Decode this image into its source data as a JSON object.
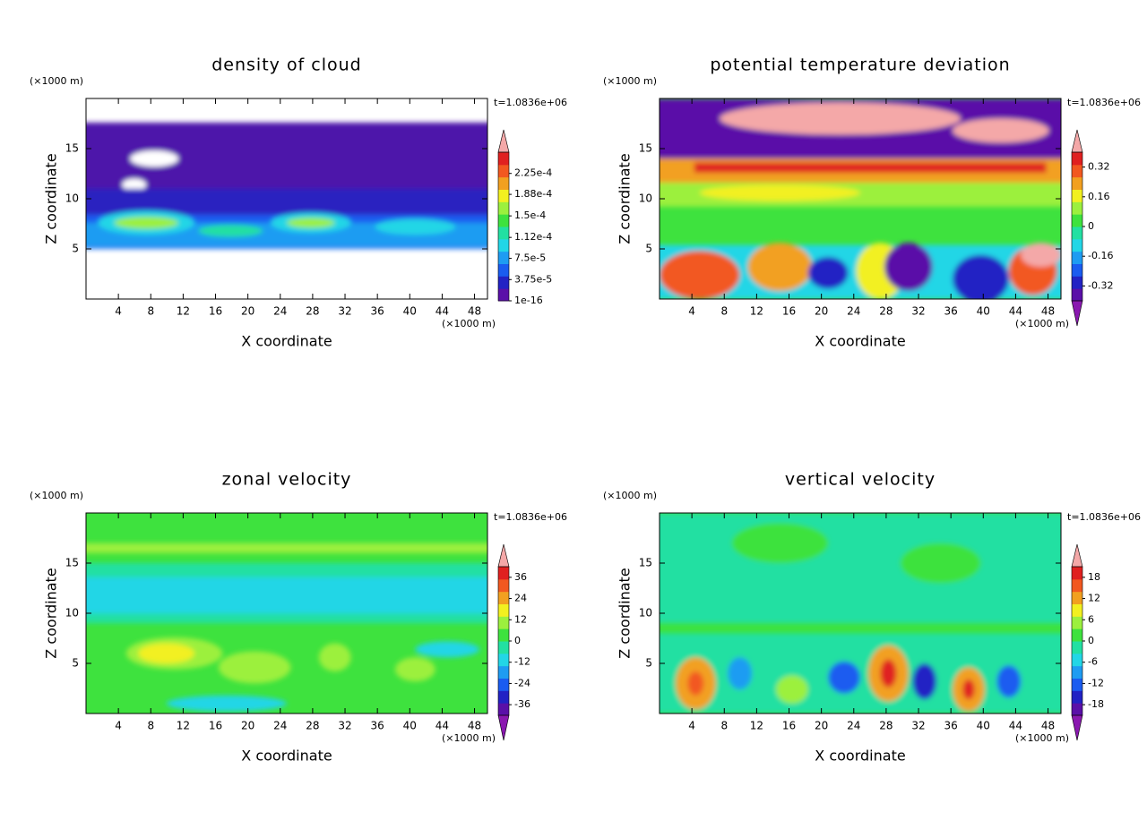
{
  "chart_data": [
    {
      "type": "contour",
      "title": "density of cloud",
      "x_label": "X coordinate",
      "y_label": "Z coordinate",
      "x_unit": "(×1000 m)",
      "y_unit": "(×1000 m)",
      "time_label": "t=1.0836e+06",
      "xlim": [
        0,
        49.6
      ],
      "ylim": [
        0,
        20
      ],
      "xticks": [
        4,
        8,
        12,
        16,
        20,
        24,
        28,
        32,
        36,
        40,
        44,
        48
      ],
      "yticks": [
        5,
        10,
        15
      ],
      "clim": [
        0,
        0.0002625
      ],
      "colorbar_extend": "max",
      "cticks": [
        {
          "value": 1e-16,
          "label": "1e-16"
        },
        {
          "value": 3.75e-05,
          "label": "3.75e-5"
        },
        {
          "value": 7.5e-05,
          "label": "7.5e-5"
        },
        {
          "value": 0.000112,
          "label": "1.12e-4"
        },
        {
          "value": 0.00015,
          "label": "1.5e-4"
        },
        {
          "value": 0.000188,
          "label": "1.88e-4"
        },
        {
          "value": 0.000225,
          "label": "2.25e-4"
        }
      ]
    },
    {
      "type": "contour",
      "title": "potential temperature deviation",
      "x_label": "X coordinate",
      "y_label": "Z coordinate",
      "x_unit": "(×1000 m)",
      "y_unit": "(×1000 m)",
      "time_label": "t=1.0836e+06",
      "xlim": [
        0,
        49.6
      ],
      "ylim": [
        0,
        20
      ],
      "xticks": [
        4,
        8,
        12,
        16,
        20,
        24,
        28,
        32,
        36,
        40,
        44,
        48
      ],
      "yticks": [
        5,
        10,
        15
      ],
      "clim": [
        -0.4,
        0.4
      ],
      "colorbar_extend": "both",
      "cticks": [
        -0.32,
        -0.16,
        0,
        0.16,
        0.32
      ]
    },
    {
      "type": "contour",
      "title": "zonal velocity",
      "x_label": "X coordinate",
      "y_label": "Z coordinate",
      "x_unit": "(×1000 m)",
      "y_unit": "(×1000 m)",
      "time_label": "t=1.0836e+06",
      "xlim": [
        0,
        49.6
      ],
      "ylim": [
        0,
        20
      ],
      "xticks": [
        4,
        8,
        12,
        16,
        20,
        24,
        28,
        32,
        36,
        40,
        44,
        48
      ],
      "yticks": [
        5,
        10,
        15
      ],
      "clim": [
        -42,
        42
      ],
      "colorbar_extend": "both",
      "cticks": [
        -36,
        -24,
        -12,
        0,
        12,
        24,
        36
      ]
    },
    {
      "type": "contour",
      "title": "vertical velocity",
      "x_label": "X coordinate",
      "y_label": "Z coordinate",
      "x_unit": "(×1000 m)",
      "y_unit": "(×1000 m)",
      "time_label": "t=1.0836e+06",
      "xlim": [
        0,
        49.6
      ],
      "ylim": [
        0,
        20
      ],
      "xticks": [
        4,
        8,
        12,
        16,
        20,
        24,
        28,
        32,
        36,
        40,
        44,
        48
      ],
      "yticks": [
        5,
        10,
        15
      ],
      "clim": [
        -21,
        21
      ],
      "colorbar_extend": "both",
      "cticks": [
        -18,
        -12,
        -6,
        0,
        6,
        12,
        18
      ]
    }
  ]
}
